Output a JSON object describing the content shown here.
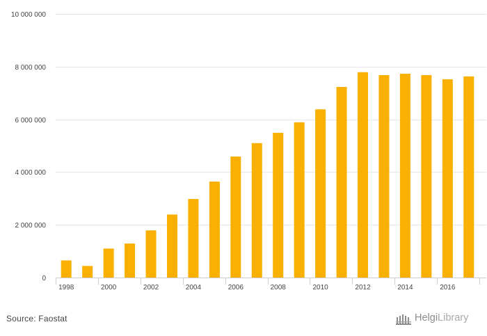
{
  "chart_data": {
    "type": "bar",
    "categories": [
      "1998",
      "1999",
      "2000",
      "2001",
      "2002",
      "2003",
      "2004",
      "2005",
      "2006",
      "2007",
      "2008",
      "2009",
      "2010",
      "2011",
      "2012",
      "2013",
      "2014",
      "2015",
      "2016",
      "2017"
    ],
    "values": [
      650000,
      440000,
      1100000,
      1290000,
      1790000,
      2390000,
      2980000,
      3640000,
      4590000,
      5100000,
      5490000,
      5890000,
      6380000,
      7230000,
      7790000,
      7680000,
      7730000,
      7680000,
      7520000,
      7630000
    ],
    "x_tick_labels": [
      "1998",
      "2000",
      "2002",
      "2004",
      "2006",
      "2008",
      "2010",
      "2012",
      "2014",
      "2016"
    ],
    "y_ticks": [
      0,
      2000000,
      4000000,
      6000000,
      8000000,
      10000000
    ],
    "y_tick_labels": [
      "0",
      "2 000 000",
      "4 000 000",
      "6 000 000",
      "8 000 000",
      "10 000 000"
    ],
    "ylim": [
      0,
      10000000
    ],
    "grid": true,
    "bar_color": "#f9b000",
    "title": "",
    "xlabel": "",
    "ylabel": ""
  },
  "footer": {
    "source": "Source: Faostat",
    "logo_bold": "Helgi",
    "logo_light": "Library"
  }
}
